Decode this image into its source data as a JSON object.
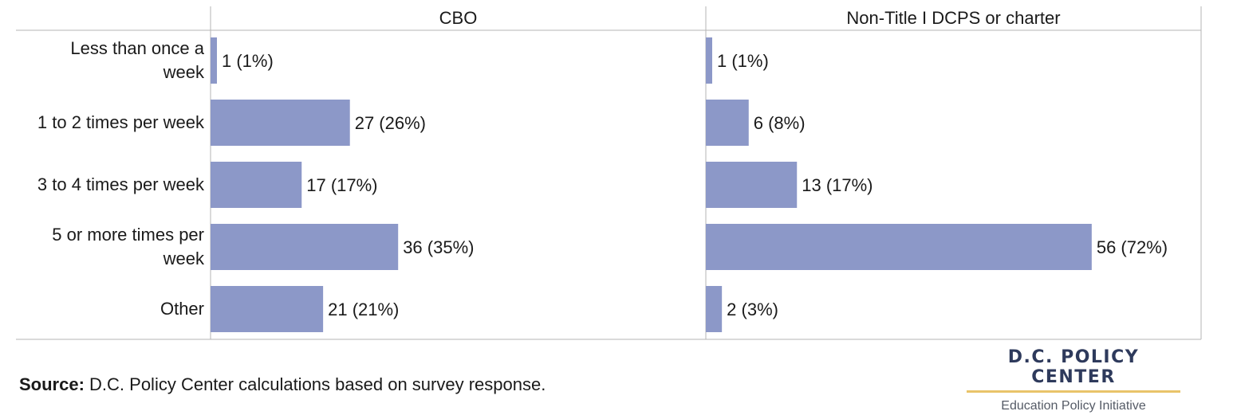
{
  "chart_data": {
    "type": "bar",
    "orientation": "horizontal",
    "categories": [
      "Less than once a week",
      "1 to 2 times per week",
      "3 to 4 times per week",
      "5 or more times per week",
      "Other"
    ],
    "category_lines": [
      [
        "Less than once a",
        "week"
      ],
      [
        "1 to 2 times per week"
      ],
      [
        "3 to 4 times per week"
      ],
      [
        "5 or more times per",
        "week"
      ],
      [
        "Other"
      ]
    ],
    "panels": [
      {
        "name": "CBO",
        "values": [
          1,
          27,
          17,
          36,
          21
        ],
        "percents": [
          1,
          26,
          17,
          35,
          21
        ],
        "labels": [
          "1 (1%)",
          "27 (26%)",
          "17 (17%)",
          "36 (35%)",
          "21 (21%)"
        ]
      },
      {
        "name": "Non-Title I DCPS or charter",
        "values": [
          1,
          6,
          13,
          56,
          2
        ],
        "percents": [
          1,
          8,
          17,
          72,
          3
        ],
        "labels": [
          "1 (1%)",
          "6 (8%)",
          "13 (17%)",
          "56 (72%)",
          "2 (3%)"
        ]
      }
    ],
    "bar_color": "#8c98c8",
    "grid": false
  },
  "source": {
    "label": "Source:",
    "text": " D.C. Policy Center calculations based on survey response."
  },
  "logo": {
    "title": "D.C. POLICY CENTER",
    "subtitle": "Education Policy Initiative",
    "accent": "#e9c46a"
  }
}
